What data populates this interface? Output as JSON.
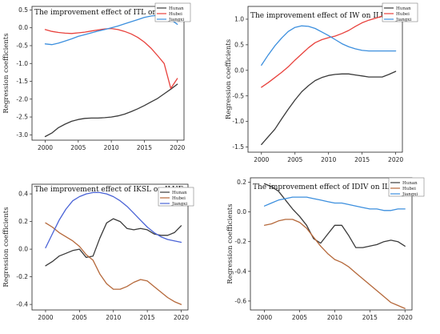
{
  "chart_data": [
    {
      "type": "line",
      "title": "The improvement effect of ITL on ILUE",
      "ylabel": "Regression coefficients",
      "xlabel": "",
      "x": [
        2000,
        2001,
        2002,
        2003,
        2004,
        2005,
        2006,
        2007,
        2008,
        2009,
        2010,
        2011,
        2012,
        2013,
        2014,
        2015,
        2016,
        2017,
        2018,
        2019,
        2020
      ],
      "xticks": [
        2000,
        2005,
        2010,
        2015,
        2020
      ],
      "yticks": [
        "-3.0",
        "-2.5",
        "-2.0",
        "-1.5",
        "-1.0",
        "-0.5",
        "0.0",
        "0.5"
      ],
      "xlim": [
        1998,
        2021
      ],
      "ylim": [
        -3.15,
        0.6
      ],
      "legend_position": "top-right",
      "series": [
        {
          "name": "Hunan",
          "color": "#3a3a3a",
          "values": [
            -3.05,
            -2.95,
            -2.8,
            -2.7,
            -2.62,
            -2.57,
            -2.54,
            -2.53,
            -2.53,
            -2.52,
            -2.5,
            -2.47,
            -2.42,
            -2.35,
            -2.27,
            -2.18,
            -2.08,
            -1.98,
            -1.85,
            -1.72,
            -1.58
          ]
        },
        {
          "name": "Hubei",
          "color": "#e8413c",
          "values": [
            -0.05,
            -0.1,
            -0.13,
            -0.15,
            -0.16,
            -0.14,
            -0.12,
            -0.09,
            -0.06,
            -0.03,
            -0.02,
            -0.05,
            -0.1,
            -0.17,
            -0.27,
            -0.4,
            -0.57,
            -0.78,
            -1.0,
            -1.7,
            -1.42
          ]
        },
        {
          "name": "Jiangxi",
          "color": "#3c8fde",
          "values": [
            -0.45,
            -0.47,
            -0.43,
            -0.37,
            -0.31,
            -0.24,
            -0.19,
            -0.14,
            -0.09,
            -0.05,
            0.0,
            0.05,
            0.11,
            0.17,
            0.23,
            0.29,
            0.33,
            0.35,
            0.33,
            0.23,
            0.1
          ]
        }
      ]
    },
    {
      "type": "line",
      "title": "The improvement effect of IW on ILUE",
      "ylabel": "Regression coefficients",
      "xlabel": "",
      "x": [
        2000,
        2001,
        2002,
        2003,
        2004,
        2005,
        2006,
        2007,
        2008,
        2009,
        2010,
        2011,
        2012,
        2013,
        2014,
        2015,
        2016,
        2017,
        2018,
        2019,
        2020
      ],
      "xticks": [
        2000,
        2005,
        2010,
        2015,
        2020
      ],
      "yticks": [
        "-1.5",
        "-1.0",
        "-0.5",
        "0.0",
        "0.5",
        "1.0"
      ],
      "xlim": [
        1998,
        2021
      ],
      "ylim": [
        -1.6,
        1.25
      ],
      "legend_position": "top-right",
      "series": [
        {
          "name": "Hunan",
          "color": "#3a3a3a",
          "values": [
            -1.45,
            -1.3,
            -1.15,
            -0.95,
            -0.76,
            -0.58,
            -0.42,
            -0.3,
            -0.2,
            -0.14,
            -0.1,
            -0.08,
            -0.07,
            -0.07,
            -0.09,
            -0.11,
            -0.13,
            -0.13,
            -0.13,
            -0.08,
            -0.02
          ]
        },
        {
          "name": "Hubei",
          "color": "#e8413c",
          "values": [
            -0.33,
            -0.24,
            -0.14,
            -0.04,
            0.07,
            0.2,
            0.32,
            0.44,
            0.54,
            0.6,
            0.64,
            0.67,
            0.72,
            0.78,
            0.86,
            0.93,
            0.98,
            1.02,
            1.06,
            1.08,
            1.1
          ]
        },
        {
          "name": "Jiangxi",
          "color": "#3c8fde",
          "values": [
            0.1,
            0.3,
            0.48,
            0.63,
            0.76,
            0.84,
            0.87,
            0.86,
            0.82,
            0.75,
            0.68,
            0.6,
            0.52,
            0.46,
            0.42,
            0.39,
            0.38,
            0.38,
            0.38,
            0.38,
            0.38
          ]
        }
      ]
    },
    {
      "type": "line",
      "title": "The improvement effect of IKSL on ILUE",
      "ylabel": "Regression coefficients",
      "xlabel": "",
      "x": [
        2000,
        2001,
        2002,
        2003,
        2004,
        2005,
        2006,
        2007,
        2008,
        2009,
        2010,
        2011,
        2012,
        2013,
        2014,
        2015,
        2016,
        2017,
        2018,
        2019,
        2020
      ],
      "xticks": [
        2000,
        2005,
        2010,
        2015,
        2020
      ],
      "yticks": [
        "-0.4",
        "-0.2",
        "0.0",
        "0.2",
        "0.4"
      ],
      "xlim": [
        1998,
        2021
      ],
      "ylim": [
        -0.44,
        0.47
      ],
      "legend_position": "top-right",
      "series": [
        {
          "name": "Hunan",
          "color": "#3a3a3a",
          "values": [
            -0.12,
            -0.09,
            -0.05,
            -0.03,
            -0.01,
            0.0,
            -0.06,
            -0.05,
            0.08,
            0.19,
            0.22,
            0.2,
            0.15,
            0.14,
            0.15,
            0.14,
            0.11,
            0.1,
            0.1,
            0.12,
            0.17
          ]
        },
        {
          "name": "Hubei",
          "color": "#b5683a",
          "values": [
            0.19,
            0.16,
            0.12,
            0.09,
            0.06,
            0.02,
            -0.04,
            -0.08,
            -0.18,
            -0.25,
            -0.29,
            -0.29,
            -0.27,
            -0.24,
            -0.22,
            -0.23,
            -0.27,
            -0.31,
            -0.35,
            -0.38,
            -0.4
          ]
        },
        {
          "name": "Jiangxi",
          "color": "#4a63d6",
          "values": [
            0.01,
            0.11,
            0.21,
            0.29,
            0.35,
            0.38,
            0.4,
            0.41,
            0.41,
            0.4,
            0.38,
            0.35,
            0.31,
            0.26,
            0.21,
            0.16,
            0.12,
            0.09,
            0.07,
            0.06,
            0.05
          ]
        }
      ]
    },
    {
      "type": "line",
      "title": "The improvement effect of IDIV on ILUE",
      "ylabel": "Regression coefficients",
      "xlabel": "",
      "x": [
        2000,
        2001,
        2002,
        2003,
        2004,
        2005,
        2006,
        2007,
        2008,
        2009,
        2010,
        2011,
        2012,
        2013,
        2014,
        2015,
        2016,
        2017,
        2018,
        2019,
        2020
      ],
      "xticks": [
        2000,
        2005,
        2010,
        2015,
        2020
      ],
      "yticks": [
        "-0.6",
        "-0.4",
        "-0.2",
        "0.0",
        "0.2"
      ],
      "xlim": [
        1998,
        2021
      ],
      "ylim": [
        -0.66,
        0.23
      ],
      "legend_position": "top-right",
      "series": [
        {
          "name": "Hunan",
          "color": "#3a3a3a",
          "values": [
            0.19,
            0.17,
            0.14,
            0.08,
            0.02,
            -0.03,
            -0.09,
            -0.18,
            -0.21,
            -0.15,
            -0.09,
            -0.09,
            -0.16,
            -0.24,
            -0.24,
            -0.23,
            -0.22,
            -0.2,
            -0.19,
            -0.2,
            -0.23
          ]
        },
        {
          "name": "Hubei",
          "color": "#b5683a",
          "values": [
            -0.09,
            -0.08,
            -0.06,
            -0.05,
            -0.05,
            -0.07,
            -0.11,
            -0.17,
            -0.23,
            -0.28,
            -0.32,
            -0.34,
            -0.37,
            -0.41,
            -0.45,
            -0.49,
            -0.53,
            -0.57,
            -0.61,
            -0.63,
            -0.65
          ]
        },
        {
          "name": "Jiangxi",
          "color": "#3c8fde",
          "values": [
            0.04,
            0.06,
            0.08,
            0.09,
            0.1,
            0.1,
            0.1,
            0.09,
            0.08,
            0.07,
            0.06,
            0.06,
            0.05,
            0.04,
            0.03,
            0.02,
            0.02,
            0.01,
            0.01,
            0.02,
            0.02
          ]
        }
      ]
    }
  ]
}
